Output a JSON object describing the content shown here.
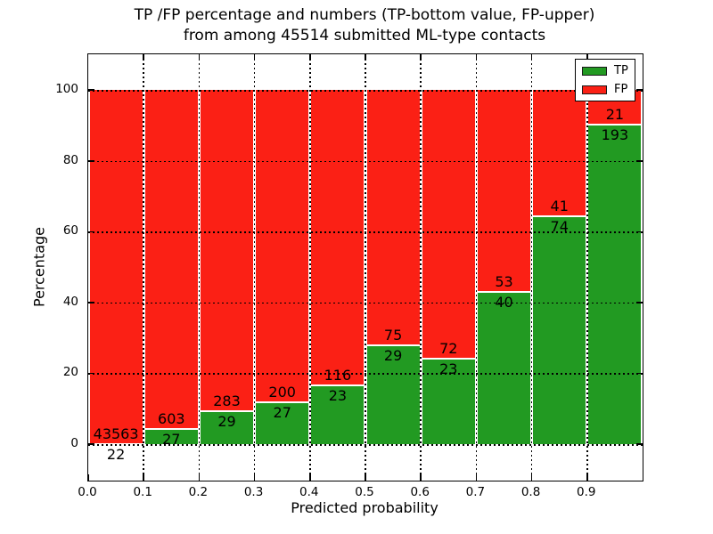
{
  "title": {
    "line1": "TP /FP percentage and numbers (TP-bottom value, FP-upper)",
    "line2": "from among 45514 submitted ML-type contacts"
  },
  "axes": {
    "xlabel": "Predicted probability",
    "ylabel": "Percentage"
  },
  "legend": {
    "position": "upper-right",
    "entries": [
      {
        "label": "TP",
        "color": "#229a22"
      },
      {
        "label": "FP",
        "color": "#fb2015"
      }
    ]
  },
  "colors": {
    "tp": "#229a22",
    "fp": "#fb2015",
    "grid": "#000000",
    "text": "#000000",
    "background": "#ffffff"
  },
  "chart_data": {
    "type": "bar",
    "stacked": true,
    "orientation": "vertical",
    "title": "TP /FP percentage and numbers (TP-bottom value, FP-upper) from among 45514 submitted ML-type contacts",
    "xlabel": "Predicted probability",
    "ylabel": "Percentage",
    "total_submitted": 45514,
    "bin_width": 0.1,
    "bin_starts": [
      0.0,
      0.1,
      0.2,
      0.3,
      0.4,
      0.5,
      0.6,
      0.7,
      0.8,
      0.9
    ],
    "series": [
      {
        "name": "TP",
        "counts": [
          22,
          27,
          29,
          27,
          23,
          29,
          23,
          40,
          74,
          193
        ]
      },
      {
        "name": "FP",
        "counts": [
          43563,
          603,
          283,
          200,
          116,
          75,
          72,
          53,
          41,
          21
        ]
      }
    ],
    "tp_percent": [
      0.05,
      4.29,
      9.29,
      11.89,
      16.55,
      27.88,
      24.21,
      43.01,
      64.35,
      90.19
    ],
    "bar_value_labels": "FP count shown above the TP/FP boundary, TP count shown below it",
    "yticks": [
      0,
      20,
      40,
      60,
      80,
      100
    ],
    "xtick_labels": [
      "0.0",
      "0.1",
      "0.2",
      "0.3",
      "0.4",
      "0.5",
      "0.6",
      "0.7",
      "0.8",
      "0.9"
    ],
    "ylim_display": [
      -10.3,
      110.1
    ],
    "grid": "dotted",
    "legend_position": "upper right"
  }
}
